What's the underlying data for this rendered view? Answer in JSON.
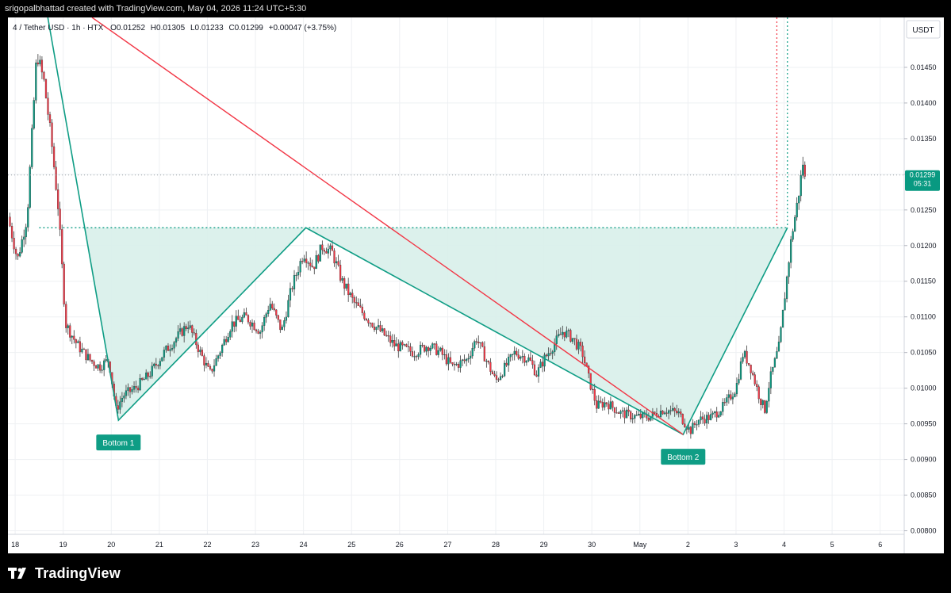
{
  "header": {
    "text": "srigopalbhattad created with TradingView.com, May 04, 2026 11:24 UTC+5:30"
  },
  "footer": {
    "brand": "TradingView",
    "logo_icon": "tradingview-logo-icon"
  },
  "symbol_line": {
    "title": "4 / Tether USD · 1h · HTX",
    "open": "O0.01252",
    "high": "H0.01305",
    "low": "L0.01233",
    "close": "C0.01299",
    "change": "+0.00047 (+3.75%)"
  },
  "price_axis": {
    "currency": "USDT",
    "last_price": "0.01299",
    "countdown": "05:31"
  },
  "colors": {
    "up": "#089981",
    "down": "#f23645",
    "pattern": "#0f9d85",
    "pattern_fill": "#d8f0ea",
    "trend_line": "#f23645",
    "grid": "#eef0f3"
  },
  "annotations": {
    "bottom1": "Bottom 1",
    "bottom2": "Bottom 2"
  },
  "chart_data": {
    "type": "candlestick",
    "x_unit": "days (hourly candles)",
    "ylim": [
      0.00795,
      0.0152
    ],
    "y_ticks": [
      0.008,
      0.0085,
      0.009,
      0.0095,
      0.01,
      0.0105,
      0.011,
      0.0115,
      0.012,
      0.0125,
      0.013,
      0.0135,
      0.014,
      0.0145
    ],
    "y_tick_labels": [
      "0.00800",
      "0.00850",
      "0.00900",
      "0.00950",
      "0.01000",
      "0.01050",
      "0.01100",
      "0.01150",
      "0.01200",
      "0.01250",
      "0.01300",
      "0.01350",
      "0.01400",
      "0.01450"
    ],
    "x_ticks": [
      {
        "d": 0,
        "label": "18"
      },
      {
        "d": 1,
        "label": "19"
      },
      {
        "d": 2,
        "label": "20"
      },
      {
        "d": 3,
        "label": "21"
      },
      {
        "d": 4,
        "label": "22"
      },
      {
        "d": 5,
        "label": "23"
      },
      {
        "d": 6,
        "label": "24"
      },
      {
        "d": 7,
        "label": "25"
      },
      {
        "d": 8,
        "label": "26"
      },
      {
        "d": 9,
        "label": "27"
      },
      {
        "d": 10,
        "label": "28"
      },
      {
        "d": 11,
        "label": "29"
      },
      {
        "d": 12,
        "label": "30"
      },
      {
        "d": 13,
        "label": "May"
      },
      {
        "d": 14,
        "label": "2"
      },
      {
        "d": 15,
        "label": "3"
      },
      {
        "d": 16,
        "label": "4"
      },
      {
        "d": 17,
        "label": "5"
      },
      {
        "d": 18,
        "label": "6"
      }
    ],
    "xlim": [
      -0.15,
      18.5
    ],
    "price_path": [
      [
        -0.15,
        0.0124
      ],
      [
        0.05,
        0.0118
      ],
      [
        0.25,
        0.0124
      ],
      [
        0.45,
        0.0147
      ],
      [
        0.6,
        0.0143
      ],
      [
        0.75,
        0.0135
      ],
      [
        0.9,
        0.0125
      ],
      [
        1.05,
        0.0109
      ],
      [
        1.3,
        0.0106
      ],
      [
        1.55,
        0.0104
      ],
      [
        1.75,
        0.0103
      ],
      [
        1.95,
        0.0104
      ],
      [
        2.1,
        0.0097
      ],
      [
        2.25,
        0.0099
      ],
      [
        2.5,
        0.01
      ],
      [
        2.8,
        0.0102
      ],
      [
        3.1,
        0.0105
      ],
      [
        3.35,
        0.0107
      ],
      [
        3.6,
        0.0109
      ],
      [
        3.85,
        0.0105
      ],
      [
        4.05,
        0.0102
      ],
      [
        4.25,
        0.0105
      ],
      [
        4.5,
        0.0109
      ],
      [
        4.8,
        0.011
      ],
      [
        5.1,
        0.0108
      ],
      [
        5.3,
        0.0112
      ],
      [
        5.55,
        0.0108
      ],
      [
        5.75,
        0.0114
      ],
      [
        6.0,
        0.0119
      ],
      [
        6.2,
        0.0117
      ],
      [
        6.4,
        0.012
      ],
      [
        6.6,
        0.0119
      ],
      [
        6.8,
        0.0115
      ],
      [
        7.05,
        0.0112
      ],
      [
        7.3,
        0.011
      ],
      [
        7.6,
        0.0108
      ],
      [
        7.9,
        0.0106
      ],
      [
        8.3,
        0.0105
      ],
      [
        8.6,
        0.0106
      ],
      [
        8.85,
        0.0105
      ],
      [
        9.1,
        0.0103
      ],
      [
        9.4,
        0.0104
      ],
      [
        9.6,
        0.0107
      ],
      [
        9.8,
        0.0104
      ],
      [
        10.0,
        0.0101
      ],
      [
        10.2,
        0.0103
      ],
      [
        10.4,
        0.0105
      ],
      [
        10.7,
        0.0104
      ],
      [
        10.85,
        0.0102
      ],
      [
        11.0,
        0.0104
      ],
      [
        11.2,
        0.0106
      ],
      [
        11.4,
        0.0108
      ],
      [
        11.6,
        0.0107
      ],
      [
        11.8,
        0.0105
      ],
      [
        11.95,
        0.0101
      ],
      [
        12.1,
        0.00975
      ],
      [
        12.3,
        0.0098
      ],
      [
        12.6,
        0.00965
      ],
      [
        12.9,
        0.0096
      ],
      [
        13.2,
        0.0096
      ],
      [
        13.5,
        0.0097
      ],
      [
        13.8,
        0.00965
      ],
      [
        14.05,
        0.0094
      ],
      [
        14.2,
        0.00955
      ],
      [
        14.5,
        0.0096
      ],
      [
        14.75,
        0.00975
      ],
      [
        15.0,
        0.01
      ],
      [
        15.15,
        0.0105
      ],
      [
        15.3,
        0.0103
      ],
      [
        15.5,
        0.00985
      ],
      [
        15.6,
        0.0097
      ],
      [
        15.7,
        0.0101
      ],
      [
        15.9,
        0.0106
      ],
      [
        16.05,
        0.0115
      ],
      [
        16.15,
        0.0121
      ],
      [
        16.3,
        0.0127
      ],
      [
        16.4,
        0.0132
      ],
      [
        16.45,
        0.0128
      ]
    ],
    "double_bottom": {
      "points": [
        [
          0.68,
          0.0152
        ],
        [
          2.15,
          0.00955
        ],
        [
          6.05,
          0.01225
        ],
        [
          13.9,
          0.00935
        ],
        [
          16.07,
          0.01225
        ]
      ],
      "neckline": [
        [
          0.5,
          0.01225
        ],
        [
          16.07,
          0.01225
        ]
      ]
    },
    "trend_line": [
      [
        1.6,
        0.0152
      ],
      [
        13.9,
        0.00935
      ]
    ],
    "vertical_markers": [
      15.85,
      16.07
    ],
    "last_price": 0.01299
  }
}
